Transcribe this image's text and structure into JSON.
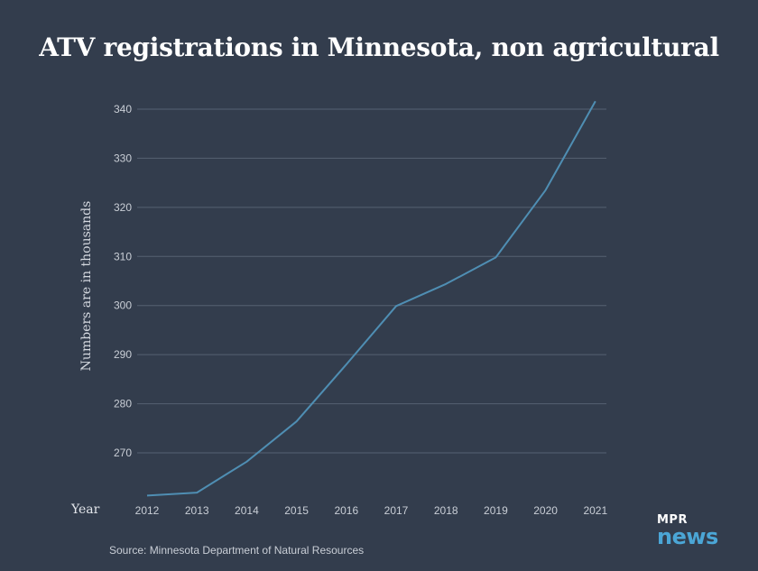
{
  "page": {
    "title": "ATV registrations in Minnesota, non agricultural",
    "source": "Source: Minnesota Department of Natural Resources"
  },
  "logo": {
    "top": "MPR",
    "bottom": "news",
    "accent_color": "#4ba6d6"
  },
  "colors": {
    "background": "#333d4d",
    "line": "#4f8eb3",
    "grid": "#566172",
    "tick_text": "#c9ced6"
  },
  "chart_data": {
    "type": "line",
    "title": "ATV registrations in Minnesota, non agricultural",
    "xlabel": "Year",
    "ylabel": "Numbers are in thousands",
    "x": [
      "2012",
      "2013",
      "2014",
      "2015",
      "2016",
      "2017",
      "2018",
      "2019",
      "2020",
      "2021"
    ],
    "series": [
      {
        "values": [
          261.3,
          261.9,
          268.2,
          276.4,
          288.0,
          299.9,
          304.4,
          309.8,
          323.5,
          341.6
        ]
      }
    ],
    "yticks": [
      "270",
      "280",
      "290",
      "300",
      "310",
      "320",
      "330",
      "340"
    ],
    "ylim": [
      261,
      342
    ],
    "grid": true,
    "legend": "none"
  }
}
